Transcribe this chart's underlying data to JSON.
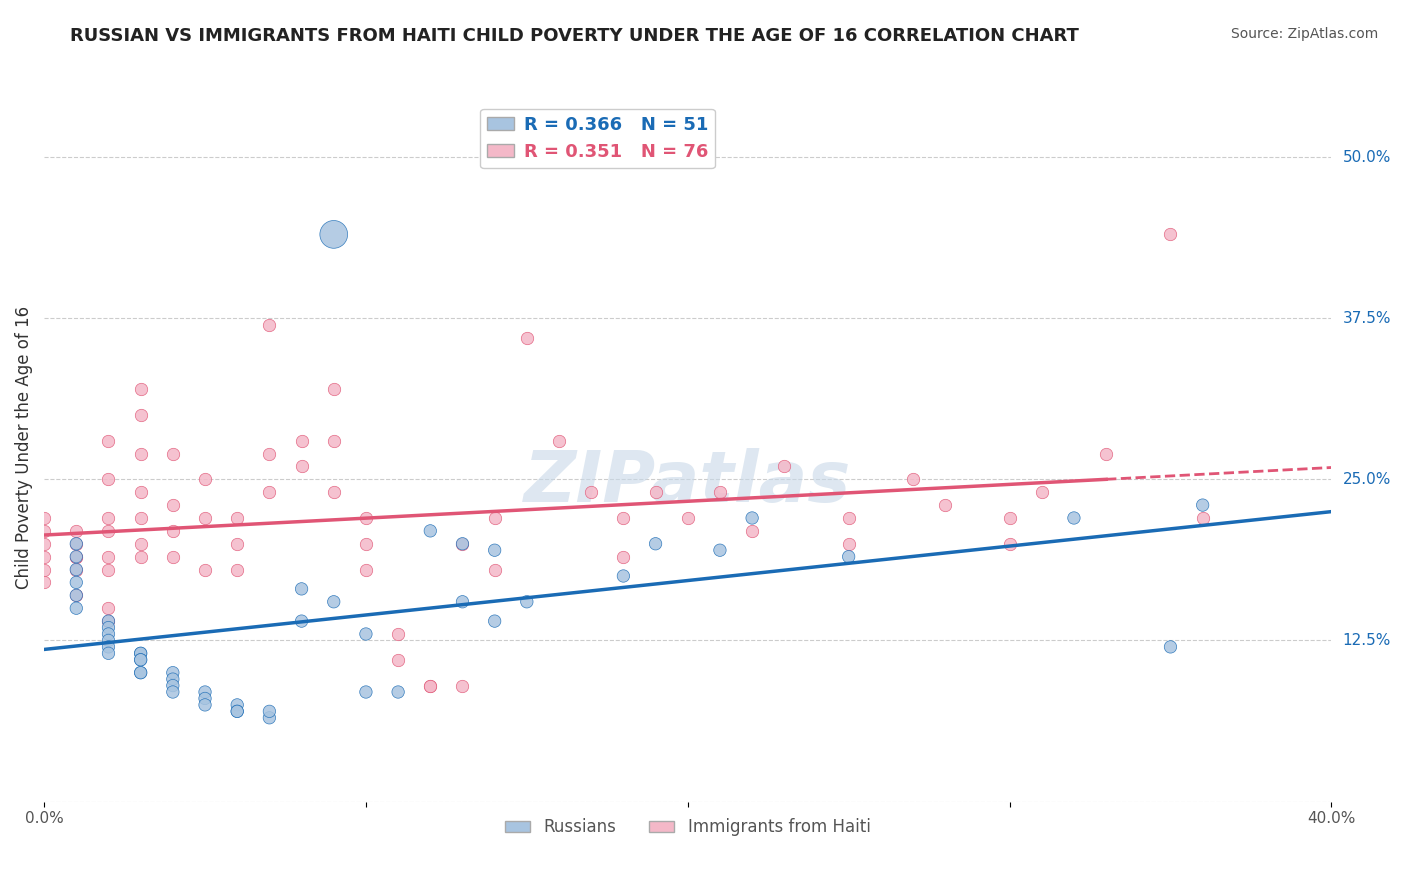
{
  "title": "RUSSIAN VS IMMIGRANTS FROM HAITI CHILD POVERTY UNDER THE AGE OF 16 CORRELATION CHART",
  "source": "Source: ZipAtlas.com",
  "xlabel_bottom": "",
  "ylabel": "Child Poverty Under the Age of 16",
  "xlim": [
    0.0,
    0.4
  ],
  "ylim": [
    0.0,
    0.55
  ],
  "xticks": [
    0.0,
    0.1,
    0.2,
    0.3,
    0.4
  ],
  "xticklabels": [
    "0.0%",
    "",
    "",
    "",
    "40.0%"
  ],
  "ytick_right_labels": [
    "50.0%",
    "37.5%",
    "25.0%",
    "12.5%"
  ],
  "ytick_right_values": [
    0.5,
    0.375,
    0.25,
    0.125
  ],
  "legend_labels": [
    "Russians",
    "Immigrants from Haiti"
  ],
  "r_russian": 0.366,
  "n_russian": 51,
  "r_haiti": 0.351,
  "n_haiti": 76,
  "russian_color": "#a8c4e0",
  "haiti_color": "#f4b8c8",
  "russian_line_color": "#1a6bb5",
  "haiti_line_color": "#e05575",
  "background_color": "#ffffff",
  "grid_color": "#cccccc",
  "watermark_text": "ZIPatlas",
  "watermark_color": "#c8d8e8",
  "russians_x": [
    0.01,
    0.01,
    0.01,
    0.01,
    0.01,
    0.01,
    0.02,
    0.02,
    0.02,
    0.02,
    0.02,
    0.02,
    0.03,
    0.03,
    0.03,
    0.03,
    0.03,
    0.03,
    0.04,
    0.04,
    0.04,
    0.04,
    0.05,
    0.05,
    0.05,
    0.06,
    0.06,
    0.06,
    0.07,
    0.07,
    0.08,
    0.08,
    0.09,
    0.1,
    0.1,
    0.11,
    0.12,
    0.13,
    0.13,
    0.14,
    0.14,
    0.15,
    0.18,
    0.19,
    0.21,
    0.22,
    0.25,
    0.32,
    0.35,
    0.36,
    0.09
  ],
  "russians_y": [
    0.2,
    0.19,
    0.18,
    0.17,
    0.16,
    0.15,
    0.14,
    0.135,
    0.13,
    0.125,
    0.12,
    0.115,
    0.115,
    0.115,
    0.11,
    0.11,
    0.1,
    0.1,
    0.1,
    0.095,
    0.09,
    0.085,
    0.085,
    0.08,
    0.075,
    0.075,
    0.07,
    0.07,
    0.065,
    0.07,
    0.165,
    0.14,
    0.155,
    0.13,
    0.085,
    0.085,
    0.21,
    0.2,
    0.155,
    0.195,
    0.14,
    0.155,
    0.175,
    0.2,
    0.195,
    0.22,
    0.19,
    0.22,
    0.12,
    0.23,
    0.44
  ],
  "russians_size": [
    10,
    7,
    7,
    7,
    7,
    7,
    7,
    7,
    7,
    7,
    7,
    7,
    7,
    7,
    7,
    7,
    7,
    7,
    7,
    7,
    7,
    7,
    7,
    7,
    7,
    7,
    7,
    7,
    7,
    7,
    7,
    7,
    7,
    7,
    7,
    7,
    7,
    7,
    7,
    7,
    7,
    7,
    7,
    7,
    7,
    7,
    7,
    7,
    7,
    7,
    30
  ],
  "haitians_x": [
    0.0,
    0.0,
    0.0,
    0.0,
    0.0,
    0.0,
    0.01,
    0.01,
    0.01,
    0.01,
    0.01,
    0.01,
    0.02,
    0.02,
    0.02,
    0.02,
    0.02,
    0.02,
    0.02,
    0.02,
    0.03,
    0.03,
    0.03,
    0.03,
    0.03,
    0.03,
    0.03,
    0.04,
    0.04,
    0.04,
    0.04,
    0.05,
    0.05,
    0.05,
    0.06,
    0.06,
    0.06,
    0.07,
    0.07,
    0.07,
    0.08,
    0.08,
    0.09,
    0.09,
    0.09,
    0.1,
    0.1,
    0.1,
    0.11,
    0.11,
    0.12,
    0.12,
    0.13,
    0.13,
    0.14,
    0.14,
    0.15,
    0.16,
    0.17,
    0.18,
    0.18,
    0.19,
    0.2,
    0.21,
    0.22,
    0.23,
    0.25,
    0.25,
    0.27,
    0.28,
    0.3,
    0.3,
    0.31,
    0.33,
    0.35,
    0.36
  ],
  "haitians_y": [
    0.2,
    0.21,
    0.22,
    0.18,
    0.19,
    0.17,
    0.2,
    0.21,
    0.19,
    0.18,
    0.19,
    0.16,
    0.28,
    0.25,
    0.21,
    0.22,
    0.19,
    0.18,
    0.15,
    0.14,
    0.32,
    0.3,
    0.27,
    0.24,
    0.22,
    0.2,
    0.19,
    0.27,
    0.23,
    0.21,
    0.19,
    0.25,
    0.22,
    0.18,
    0.22,
    0.2,
    0.18,
    0.37,
    0.27,
    0.24,
    0.28,
    0.26,
    0.32,
    0.28,
    0.24,
    0.22,
    0.2,
    0.18,
    0.13,
    0.11,
    0.09,
    0.09,
    0.09,
    0.2,
    0.22,
    0.18,
    0.36,
    0.28,
    0.24,
    0.22,
    0.19,
    0.24,
    0.22,
    0.24,
    0.21,
    0.26,
    0.22,
    0.2,
    0.25,
    0.23,
    0.22,
    0.2,
    0.24,
    0.27,
    0.44,
    0.22
  ]
}
